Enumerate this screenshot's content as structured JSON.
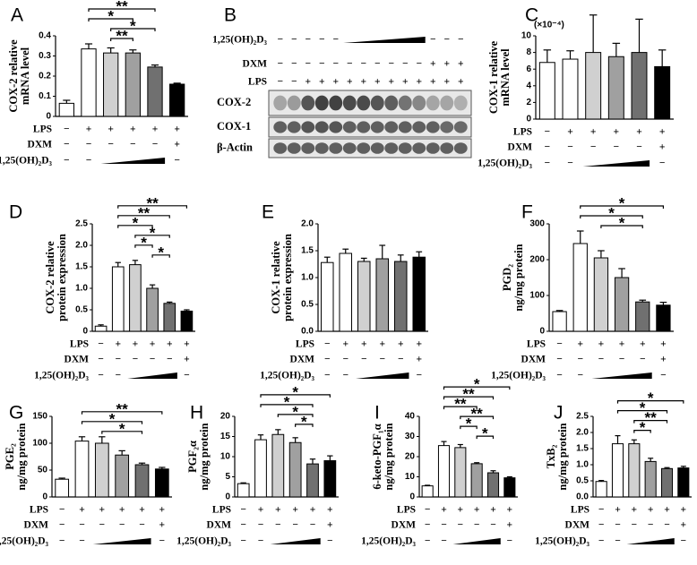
{
  "chart_data": [
    {
      "type": "bar",
      "panel": "A",
      "ylabel": [
        "COX-2 relative",
        "mRNA level"
      ],
      "values": [
        0.065,
        0.335,
        0.315,
        0.315,
        0.245,
        0.16
      ],
      "errors": [
        0.015,
        0.025,
        0.025,
        0.015,
        0.01,
        0.005
      ],
      "colors": [
        "#ffffff",
        "#ffffff",
        "#d0d0d0",
        "#a0a0a0",
        "#707070",
        "#000000"
      ],
      "ylim": [
        0,
        0.4
      ],
      "yticks": [
        0,
        0.1,
        0.2,
        0.3,
        0.4
      ],
      "conditions": [
        {
          "label": "LPS",
          "signs": [
            "−",
            "+",
            "+",
            "+",
            "+",
            "+"
          ]
        },
        {
          "label": "DXM",
          "signs": [
            "−",
            "−",
            "−",
            "−",
            "−",
            "+"
          ]
        },
        {
          "label": "1,25(OH)₂D₃",
          "signs": [
            "−",
            "−",
            null,
            null,
            null,
            "−"
          ]
        }
      ],
      "annotations": [
        {
          "text": "**",
          "between": [
            1,
            4
          ]
        },
        {
          "text": "*",
          "between": [
            1,
            3
          ]
        },
        {
          "text": "*",
          "between": [
            2,
            4
          ]
        },
        {
          "text": "**",
          "between": [
            2,
            3
          ]
        }
      ]
    },
    {
      "type": "blot",
      "panel": "B",
      "conditions": [
        {
          "label": "1,25(OH)₂D₃",
          "signs": [
            "−",
            "−",
            "−",
            "−",
            "−",
            null,
            null,
            null,
            null,
            null,
            null,
            "−",
            "−",
            "−"
          ]
        },
        {
          "label": "DXM",
          "signs": [
            "−",
            "−",
            "−",
            "−",
            "−",
            "−",
            "−",
            "−",
            "−",
            "−",
            "−",
            "+",
            "+",
            "+"
          ]
        },
        {
          "label": "LPS",
          "signs": [
            "−",
            "−",
            "+",
            "+",
            "+",
            "+",
            "+",
            "+",
            "+",
            "+",
            "+",
            "+",
            "+",
            "+"
          ]
        }
      ],
      "bands": [
        "COX-2",
        "COX-1",
        "β-Actin"
      ]
    },
    {
      "type": "bar",
      "panel": "C",
      "ylabel": [
        "COX-1 relative",
        "mRNA level"
      ],
      "unit": "(×10⁻⁴)",
      "values": [
        6.8,
        7.2,
        8,
        7.5,
        8,
        6.3
      ],
      "errors": [
        1.5,
        1,
        4.5,
        1.6,
        4,
        2
      ],
      "colors": [
        "#ffffff",
        "#ffffff",
        "#d0d0d0",
        "#a0a0a0",
        "#707070",
        "#000000"
      ],
      "ylim": [
        0,
        10
      ],
      "yticks": [
        0,
        2,
        4,
        6,
        8,
        10
      ],
      "conditions": [
        {
          "label": "LPS",
          "signs": [
            "−",
            "+",
            "+",
            "+",
            "+",
            "+"
          ]
        },
        {
          "label": "DXM",
          "signs": [
            "−",
            "−",
            "−",
            "−",
            "−",
            "+"
          ]
        },
        {
          "label": "1,25(OH)₂D₃",
          "signs": [
            "−",
            "−",
            null,
            null,
            null,
            "−"
          ]
        }
      ],
      "annotations": []
    },
    {
      "type": "bar",
      "panel": "D",
      "ylabel": [
        "COX-2 relative",
        "protein expression"
      ],
      "values": [
        0.12,
        1.5,
        1.55,
        1.0,
        0.65,
        0.47
      ],
      "errors": [
        0.03,
        0.1,
        0.1,
        0.08,
        0.03,
        0.03
      ],
      "colors": [
        "#ffffff",
        "#ffffff",
        "#d0d0d0",
        "#a0a0a0",
        "#707070",
        "#000000"
      ],
      "ylim": [
        0,
        2.5
      ],
      "yticks": [
        0,
        0.5,
        {
          "value": 1,
          "label": "1.0"
        },
        1.5,
        {
          "value": 2,
          "label": "2.0"
        },
        2.5
      ],
      "conditions": [
        {
          "label": "LPS",
          "signs": [
            "−",
            "+",
            "+",
            "+",
            "+",
            "+"
          ]
        },
        {
          "label": "DXM",
          "signs": [
            "−",
            "−",
            "−",
            "−",
            "−",
            "+"
          ]
        },
        {
          "label": "1,25(OH)₂D₃",
          "signs": [
            "−",
            "−",
            null,
            null,
            null,
            "−"
          ]
        }
      ],
      "annotations": [
        {
          "text": "**",
          "between": [
            1,
            5
          ]
        },
        {
          "text": "**",
          "between": [
            1,
            4
          ]
        },
        {
          "text": "*",
          "between": [
            1,
            3
          ]
        },
        {
          "text": "*",
          "between": [
            2,
            4
          ]
        },
        {
          "text": "*",
          "between": [
            2,
            3
          ]
        },
        {
          "text": "*",
          "between": [
            3,
            4
          ]
        }
      ]
    },
    {
      "type": "bar",
      "panel": "E",
      "ylabel": [
        "COX-1 relative",
        "protein expression"
      ],
      "values": [
        1.28,
        1.45,
        1.3,
        1.35,
        1.3,
        1.38
      ],
      "errors": [
        0.1,
        0.08,
        0.06,
        0.25,
        0.12,
        0.1
      ],
      "colors": [
        "#ffffff",
        "#ffffff",
        "#d0d0d0",
        "#a0a0a0",
        "#707070",
        "#000000"
      ],
      "ylim": [
        0,
        2
      ],
      "yticks": [
        {
          "value": 0,
          "label": "0.0"
        },
        0.5,
        {
          "value": 1,
          "label": "1.0"
        },
        1.5,
        {
          "value": 2,
          "label": "2.0"
        }
      ],
      "conditions": [
        {
          "label": "LPS",
          "signs": [
            "−",
            "+",
            "+",
            "+",
            "+",
            "+"
          ]
        },
        {
          "label": "DXM",
          "signs": [
            "−",
            "−",
            "−",
            "−",
            "−",
            "+"
          ]
        },
        {
          "label": "1,25(OH)₂D₃",
          "signs": [
            "−",
            "−",
            null,
            null,
            null,
            "−"
          ]
        }
      ],
      "annotations": []
    },
    {
      "type": "bar",
      "panel": "F",
      "ylabel": [
        "PGD₂",
        "ng/mg protein"
      ],
      "values": [
        55,
        245,
        205,
        150,
        82,
        73
      ],
      "errors": [
        3,
        35,
        20,
        25,
        5,
        8
      ],
      "colors": [
        "#ffffff",
        "#ffffff",
        "#d0d0d0",
        "#a0a0a0",
        "#707070",
        "#000000"
      ],
      "ylim": [
        0,
        300
      ],
      "yticks": [
        0,
        100,
        200,
        300
      ],
      "conditions": [
        {
          "label": "LPS",
          "signs": [
            "−",
            "+",
            "+",
            "+",
            "+",
            "+"
          ]
        },
        {
          "label": "DXM",
          "signs": [
            "−",
            "−",
            "−",
            "−",
            "−",
            "+"
          ]
        },
        {
          "label": "1,25(OH)₂D₃",
          "signs": [
            "−",
            "−",
            null,
            null,
            null,
            "−"
          ]
        }
      ],
      "annotations": [
        {
          "text": "*",
          "between": [
            1,
            5
          ]
        },
        {
          "text": "*",
          "between": [
            1,
            4
          ]
        },
        {
          "text": "*",
          "between": [
            2,
            4
          ]
        }
      ]
    },
    {
      "type": "bar",
      "panel": "G",
      "ylabel": [
        "PGE₂",
        "ng/mg protein"
      ],
      "values": [
        33,
        104,
        100,
        78,
        60,
        52
      ],
      "errors": [
        2,
        8,
        12,
        8,
        3,
        3
      ],
      "colors": [
        "#ffffff",
        "#ffffff",
        "#d0d0d0",
        "#a0a0a0",
        "#707070",
        "#000000"
      ],
      "ylim": [
        0,
        150
      ],
      "yticks": [
        0,
        50,
        100,
        150
      ],
      "conditions": [
        {
          "label": "LPS",
          "signs": [
            "−",
            "+",
            "+",
            "+",
            "+",
            "+"
          ]
        },
        {
          "label": "DXM",
          "signs": [
            "−",
            "−",
            "−",
            "−",
            "−",
            "+"
          ]
        },
        {
          "label": "1,25(OH)₂D₃",
          "signs": [
            "−",
            "−",
            null,
            null,
            null,
            "−"
          ]
        }
      ],
      "annotations": [
        {
          "text": "**",
          "between": [
            1,
            5
          ]
        },
        {
          "text": "*",
          "between": [
            1,
            4
          ]
        },
        {
          "text": "*",
          "between": [
            2,
            4
          ]
        }
      ]
    },
    {
      "type": "bar",
      "panel": "H",
      "ylabel": [
        "PGF₂α",
        "ng/mg protein"
      ],
      "values": [
        3.3,
        14.2,
        15.5,
        13.5,
        8.2,
        9
      ],
      "errors": [
        0.2,
        1.2,
        1.2,
        1.2,
        1.2,
        1.2
      ],
      "colors": [
        "#ffffff",
        "#ffffff",
        "#d0d0d0",
        "#a0a0a0",
        "#707070",
        "#000000"
      ],
      "ylim": [
        0,
        20
      ],
      "yticks": [
        0,
        5,
        10,
        15,
        20
      ],
      "conditions": [
        {
          "label": "LPS",
          "signs": [
            "−",
            "+",
            "+",
            "+",
            "+",
            "+"
          ]
        },
        {
          "label": "DXM",
          "signs": [
            "−",
            "−",
            "−",
            "−",
            "−",
            "+"
          ]
        },
        {
          "label": "1,25(OH)₂D₃",
          "signs": [
            "−",
            "−",
            null,
            null,
            null,
            "−"
          ]
        }
      ],
      "annotations": [
        {
          "text": "*",
          "between": [
            1,
            5
          ]
        },
        {
          "text": "*",
          "between": [
            1,
            4
          ]
        },
        {
          "text": "*",
          "between": [
            2,
            4
          ]
        },
        {
          "text": "*",
          "between": [
            3,
            4
          ]
        }
      ]
    },
    {
      "type": "bar",
      "panel": "I",
      "ylabel": [
        "6-keto-PGF₁α",
        "ng/mg protein"
      ],
      "values": [
        5.5,
        25.5,
        24.5,
        16.5,
        12,
        9.5
      ],
      "errors": [
        0.3,
        2,
        1.5,
        0.5,
        1,
        0.5
      ],
      "colors": [
        "#ffffff",
        "#ffffff",
        "#d0d0d0",
        "#a0a0a0",
        "#707070",
        "#000000"
      ],
      "ylim": [
        0,
        40
      ],
      "yticks": [
        0,
        10,
        20,
        30,
        40
      ],
      "conditions": [
        {
          "label": "LPS",
          "signs": [
            "−",
            "+",
            "+",
            "+",
            "+",
            "+"
          ]
        },
        {
          "label": "DXM",
          "signs": [
            "−",
            "−",
            "−",
            "−",
            "−",
            "+"
          ]
        },
        {
          "label": "1,25(OH)₂D₃",
          "signs": [
            "−",
            "−",
            null,
            null,
            null,
            "−"
          ]
        }
      ],
      "annotations": [
        {
          "text": "*",
          "between": [
            1,
            5
          ]
        },
        {
          "text": "**",
          "between": [
            1,
            4
          ]
        },
        {
          "text": "**",
          "between": [
            1,
            3
          ]
        },
        {
          "text": "**",
          "between": [
            2,
            4
          ]
        },
        {
          "text": "*",
          "between": [
            2,
            3
          ]
        },
        {
          "text": "*",
          "between": [
            3,
            4
          ]
        }
      ]
    },
    {
      "type": "bar",
      "panel": "J",
      "ylabel": [
        "TxB₂",
        "ng/mg protein"
      ],
      "values": [
        0.48,
        1.65,
        1.65,
        1.1,
        0.88,
        0.9
      ],
      "errors": [
        0.03,
        0.25,
        0.12,
        0.1,
        0.03,
        0.05
      ],
      "colors": [
        "#ffffff",
        "#ffffff",
        "#d0d0d0",
        "#a0a0a0",
        "#707070",
        "#000000"
      ],
      "ylim": [
        0,
        2.5
      ],
      "yticks": [
        {
          "value": 0,
          "label": "0.0"
        },
        0.5,
        {
          "value": 1,
          "label": "1.0"
        },
        1.5,
        {
          "value": 2,
          "label": "2.0"
        },
        2.5
      ],
      "conditions": [
        {
          "label": "LPS",
          "signs": [
            "−",
            "+",
            "+",
            "+",
            "+",
            "+"
          ]
        },
        {
          "label": "DXM",
          "signs": [
            "−",
            "−",
            "−",
            "−",
            "−",
            "+"
          ]
        },
        {
          "label": "1,25(OH)₂D₃",
          "signs": [
            "−",
            "−",
            null,
            null,
            null,
            "−"
          ]
        }
      ],
      "annotations": [
        {
          "text": "*",
          "between": [
            1,
            5
          ]
        },
        {
          "text": "*",
          "between": [
            1,
            4
          ]
        },
        {
          "text": "**",
          "between": [
            2,
            4
          ]
        },
        {
          "text": "*",
          "between": [
            2,
            3
          ]
        }
      ]
    }
  ]
}
